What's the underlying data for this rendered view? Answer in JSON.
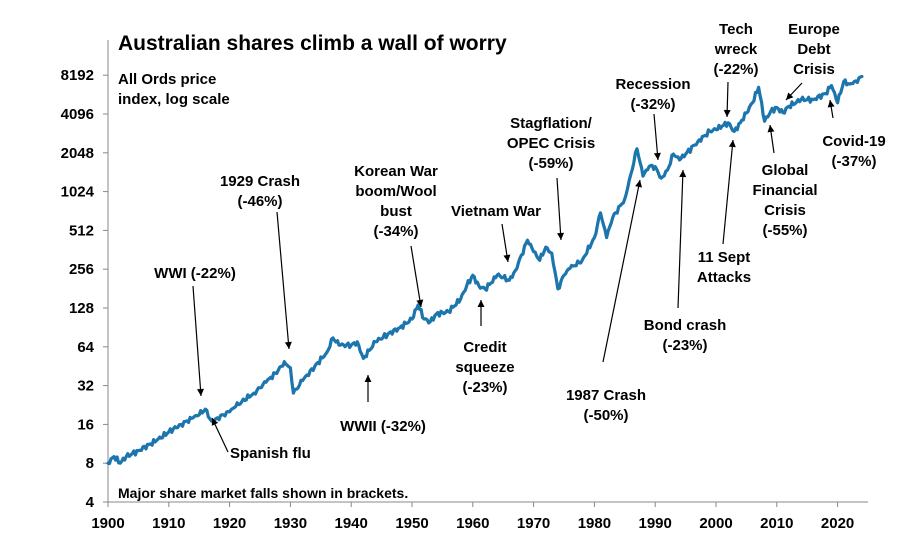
{
  "chart_data": {
    "type": "line",
    "title": "Australian shares climb a wall of worry",
    "subtitle": [
      "All Ords price",
      "index, log scale"
    ],
    "footnote": "Major share market falls shown in brackets.",
    "x_ticks": [
      "1900",
      "1910",
      "1920",
      "1930",
      "1940",
      "1950",
      "1960",
      "1970",
      "1980",
      "1990",
      "2000",
      "2010",
      "2020"
    ],
    "y_ticks": [
      "4",
      "8",
      "16",
      "32",
      "64",
      "128",
      "256",
      "512",
      "1024",
      "2048",
      "4096",
      "8192"
    ],
    "xlim": [
      1900,
      2025
    ],
    "ylim": [
      4,
      16384
    ],
    "log_scale_y": true,
    "series_color": "#1c75ad",
    "series": [
      {
        "x": [
          1900,
          1901,
          1902,
          1903,
          1905,
          1908,
          1910,
          1912,
          1914,
          1915,
          1916,
          1917,
          1918,
          1919,
          1920,
          1921,
          1922,
          1924,
          1926,
          1928,
          1929,
          1930,
          1930.5,
          1931,
          1932,
          1934,
          1936,
          1937,
          1938,
          1940,
          1941,
          1942,
          1943,
          1944,
          1946,
          1948,
          1950,
          1951,
          1952,
          1953,
          1954,
          1956,
          1958,
          1959,
          1960,
          1961,
          1962,
          1963,
          1964,
          1965,
          1966,
          1967,
          1968,
          1969,
          1970,
          1971,
          1972,
          1973,
          1974,
          1975,
          1976,
          1978,
          1980,
          1981,
          1982,
          1983,
          1985,
          1986,
          1987,
          1988,
          1989,
          1990,
          1991,
          1992,
          1993,
          1994,
          1995,
          1997,
          1999,
          2000,
          2001,
          2002,
          2003,
          2004,
          2006,
          2007,
          2008,
          2009,
          2010,
          2011,
          2012,
          2014,
          2015,
          2016,
          2018,
          2019,
          2020,
          2021,
          2022,
          2023,
          2024
        ],
        "y": [
          8,
          9,
          8,
          9,
          10,
          12,
          14,
          16,
          18,
          19,
          21,
          17,
          18,
          19,
          20,
          22,
          24,
          28,
          34,
          42,
          49,
          44,
          28,
          30,
          35,
          45,
          58,
          75,
          66,
          66,
          70,
          52,
          60,
          70,
          80,
          90,
          105,
          135,
          105,
          100,
          115,
          120,
          150,
          190,
          230,
          190,
          180,
          200,
          230,
          220,
          210,
          250,
          330,
          430,
          350,
          300,
          380,
          340,
          180,
          230,
          260,
          300,
          450,
          700,
          450,
          640,
          900,
          1400,
          2200,
          1350,
          1600,
          1600,
          1300,
          1500,
          2000,
          1800,
          2000,
          2500,
          3000,
          3100,
          3300,
          3500,
          3000,
          3500,
          5000,
          6600,
          3600,
          4300,
          4600,
          4200,
          4700,
          5300,
          5300,
          5300,
          5900,
          6800,
          5000,
          7300,
          7000,
          7400,
          8000
        ]
      }
    ],
    "annotations": [
      {
        "label": [
          "WWI (-22%)"
        ]
      },
      {
        "label": [
          "Spanish flu"
        ]
      },
      {
        "label": [
          "1929 Crash",
          "(-46%)"
        ]
      },
      {
        "label": [
          "WWII (-32%)"
        ]
      },
      {
        "label": [
          "Korean War",
          "boom/Wool",
          "bust",
          "(-34%)"
        ]
      },
      {
        "label": [
          "Credit",
          "squeeze",
          "(-23%)"
        ]
      },
      {
        "label": [
          "Vietnam War"
        ]
      },
      {
        "label": [
          "Stagflation/",
          "OPEC Crisis",
          "(-59%)"
        ]
      },
      {
        "label": [
          "1987 Crash",
          "(-50%)"
        ]
      },
      {
        "label": [
          "Recession",
          "(-32%)"
        ]
      },
      {
        "label": [
          "Bond crash",
          "(-23%)"
        ]
      },
      {
        "label": [
          "Tech",
          "wreck",
          "(-22%)"
        ]
      },
      {
        "label": [
          "11 Sept",
          "Attacks"
        ]
      },
      {
        "label": [
          "Global",
          "Financial",
          "Crisis",
          "(-55%)"
        ]
      },
      {
        "label": [
          "Europe",
          "Debt",
          "Crisis"
        ]
      },
      {
        "label": [
          "Covid-19",
          "(-37%)"
        ]
      }
    ]
  }
}
